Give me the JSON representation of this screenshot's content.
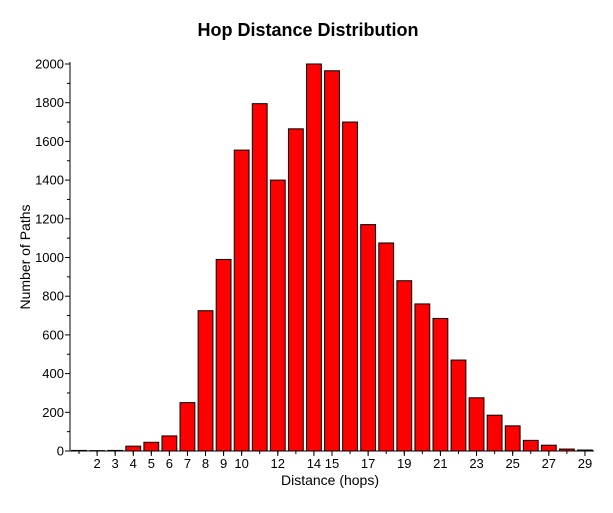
{
  "chart_data": {
    "type": "bar",
    "title": "Hop Distance Distribution",
    "xlabel": "Distance (hops)",
    "ylabel": "Number of Paths",
    "categories": [
      1,
      2,
      3,
      4,
      5,
      6,
      7,
      8,
      9,
      10,
      11,
      12,
      13,
      14,
      15,
      16,
      17,
      18,
      19,
      20,
      21,
      22,
      23,
      24,
      25,
      26,
      27,
      28,
      29
    ],
    "values": [
      3,
      2,
      3,
      25,
      45,
      78,
      250,
      725,
      990,
      1555,
      1795,
      1400,
      1665,
      2000,
      1965,
      1700,
      1170,
      1075,
      880,
      760,
      685,
      470,
      275,
      185,
      130,
      55,
      30,
      10,
      5
    ],
    "x_tick_labels": [
      "2",
      "3",
      "4",
      "5",
      "6",
      "7",
      "8",
      "9",
      "10",
      "12",
      "14",
      "15",
      "17",
      "19",
      "21",
      "23",
      "25",
      "27",
      "29"
    ],
    "x_tick_values": [
      2,
      3,
      4,
      5,
      6,
      7,
      8,
      9,
      10,
      12,
      14,
      15,
      17,
      19,
      21,
      23,
      25,
      27,
      29
    ],
    "y_tick_labels": [
      "0",
      "200",
      "400",
      "600",
      "800",
      "1000",
      "1200",
      "1400",
      "1600",
      "1800",
      "2000"
    ],
    "y_tick_values": [
      0,
      200,
      400,
      600,
      800,
      1000,
      1200,
      1400,
      1600,
      1800,
      2000
    ],
    "ylim": [
      0,
      2000
    ],
    "xlim": [
      0.5,
      29.5
    ],
    "grid": false,
    "bar_color": "#ff0000",
    "bar_edge_color": "#000000"
  }
}
